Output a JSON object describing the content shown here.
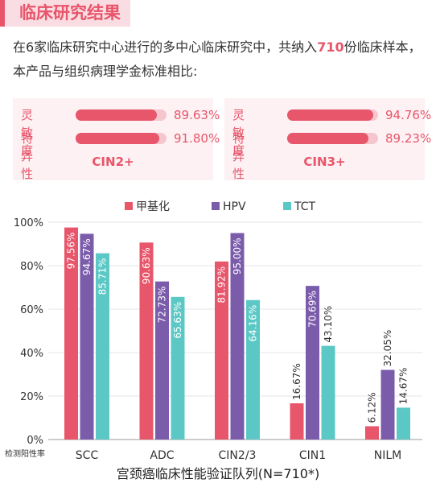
{
  "header": {
    "title": "临床研究结果"
  },
  "intro": {
    "text_before": "在6家临床研究中心进行的多中心临床研究中，共纳入",
    "count": "710",
    "text_after": "份临床样本，本产品与组织病理学金标准相比:"
  },
  "cards": [
    {
      "name": "CIN2+",
      "rows": [
        {
          "label": "灵敏度",
          "value": "89.63%",
          "fraction": 0.8963
        },
        {
          "label": "特异性",
          "value": "91.80%",
          "fraction": 0.918
        }
      ]
    },
    {
      "name": "CIN3+",
      "rows": [
        {
          "label": "灵敏度",
          "value": "94.76%",
          "fraction": 0.9476
        },
        {
          "label": "特异性",
          "value": "89.23%",
          "fraction": 0.8923
        }
      ]
    }
  ],
  "chart_data": {
    "type": "bar",
    "title": "宫颈癌临床性能验证队列(N=710*)",
    "ylabel": "检测阳性率",
    "ylim": [
      0,
      100
    ],
    "yticks": [
      "0%",
      "20%",
      "40%",
      "60%",
      "80%",
      "100%"
    ],
    "ytick_values": [
      0,
      20,
      40,
      60,
      80,
      100
    ],
    "categories": [
      "SCC",
      "ADC",
      "CIN2/3",
      "CIN1",
      "NILM"
    ],
    "legend_position": "top",
    "series": [
      {
        "name": "甲基化",
        "color": "#e8566b",
        "values": [
          97.56,
          90.63,
          81.92,
          16.67,
          6.12
        ],
        "labels": [
          "97.56%",
          "90.63%",
          "81.92%",
          "16.67%",
          "6.12%"
        ]
      },
      {
        "name": "HPV",
        "color": "#7b5cab",
        "values": [
          94.67,
          72.73,
          95.0,
          70.69,
          32.05
        ],
        "labels": [
          "94.67%",
          "72.73%",
          "95.00%",
          "70.69%",
          "32.05%"
        ]
      },
      {
        "name": "TCT",
        "color": "#5cc8c5",
        "values": [
          85.71,
          65.63,
          64.16,
          43.1,
          14.67
        ],
        "labels": [
          "85.71%",
          "65.63%",
          "64.16%",
          "43.10%",
          "14.67%"
        ]
      }
    ]
  }
}
